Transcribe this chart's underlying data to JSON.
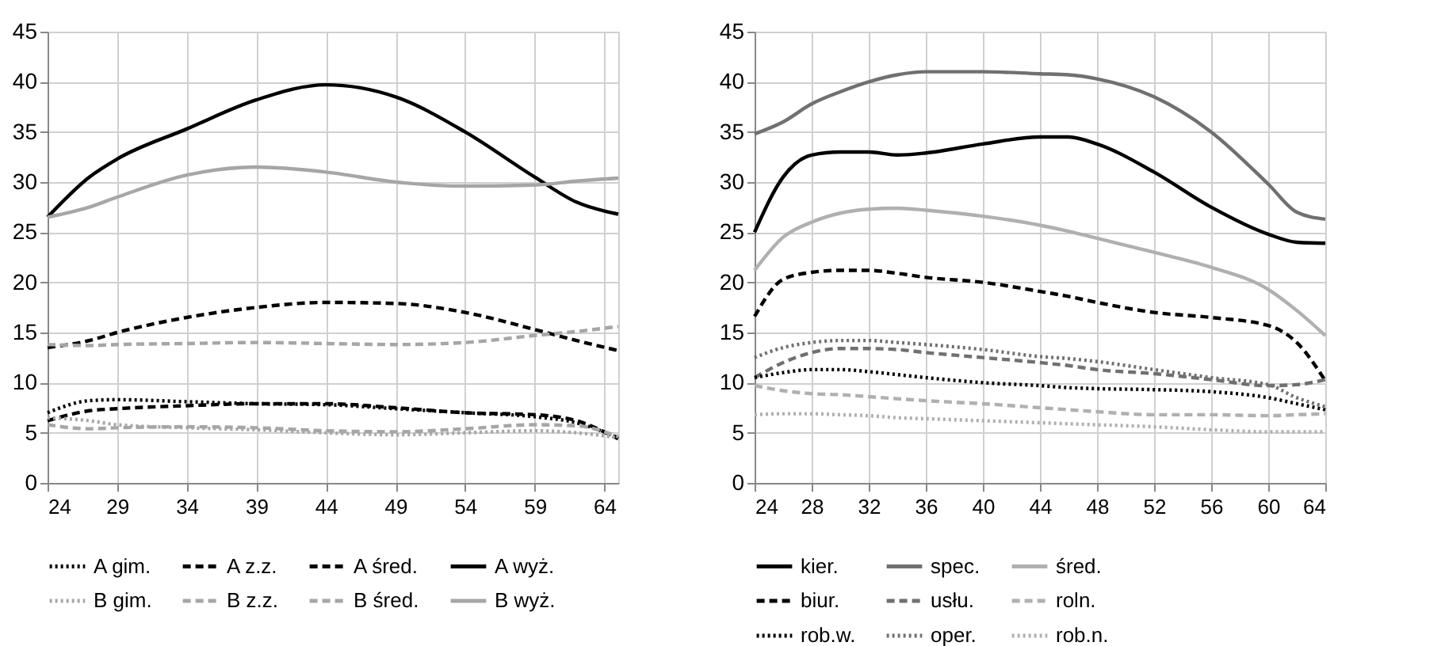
{
  "chart_data": [
    {
      "type": "line",
      "x": [
        24,
        27,
        29,
        34,
        39,
        44,
        49,
        54,
        59,
        62,
        65
      ],
      "xlim": [
        24,
        65
      ],
      "xticks": [
        24,
        29,
        34,
        39,
        44,
        49,
        54,
        59,
        64
      ],
      "ylim": [
        0,
        45
      ],
      "yticks": [
        0,
        5,
        10,
        15,
        20,
        25,
        30,
        35,
        40,
        45
      ],
      "grid": true,
      "legend": "bottom",
      "series": [
        {
          "name": "A gim.",
          "color": "#000000",
          "line_style": "dotted",
          "values": [
            7,
            8.2,
            8.3,
            8.1,
            7.9,
            7.8,
            7.4,
            7,
            6.6,
            6,
            4.5
          ]
        },
        {
          "name": "A z.z.",
          "color": "#000000",
          "line_style": "dashed",
          "values": [
            6.2,
            7.2,
            7.4,
            7.7,
            7.9,
            7.9,
            7.5,
            7,
            6.8,
            6.2,
            4.4
          ]
        },
        {
          "name": "A śred.",
          "color": "#000000",
          "line_style": "dashed",
          "values": [
            13.5,
            14.2,
            15,
            16.5,
            17.5,
            18,
            17.9,
            17,
            15.3,
            14.2,
            13.2
          ]
        },
        {
          "name": "A wyż.",
          "color": "#000000",
          "line_style": "solid",
          "values": [
            26.5,
            30.5,
            32.3,
            35.3,
            38.2,
            39.7,
            38.5,
            35,
            30.5,
            28,
            26.8
          ]
        },
        {
          "name": "B gim.",
          "color": "#a6a6a6",
          "line_style": "dotted",
          "values": [
            6.5,
            6.2,
            5.8,
            5.5,
            5.3,
            5,
            4.8,
            5,
            5.2,
            5,
            4.5
          ]
        },
        {
          "name": "B z.z.",
          "color": "#a6a6a6",
          "line_style": "dashed",
          "values": [
            5.8,
            5.4,
            5.5,
            5.6,
            5.5,
            5.2,
            5.1,
            5.4,
            5.8,
            5.7,
            4.6
          ]
        },
        {
          "name": "B śred.",
          "color": "#a6a6a6",
          "line_style": "dashed",
          "values": [
            13.8,
            13.7,
            13.8,
            13.9,
            14,
            13.9,
            13.8,
            14,
            14.7,
            15.1,
            15.6
          ]
        },
        {
          "name": "B wyż.",
          "color": "#a6a6a6",
          "line_style": "solid",
          "values": [
            26.5,
            27.5,
            28.5,
            30.7,
            31.5,
            31,
            30,
            29.6,
            29.7,
            30.1,
            30.4
          ]
        }
      ]
    },
    {
      "type": "line",
      "x": [
        24,
        26,
        28,
        30,
        32,
        34,
        36,
        40,
        44,
        46,
        48,
        52,
        56,
        60,
        62,
        64
      ],
      "xlim": [
        24,
        64
      ],
      "xticks": [
        24,
        28,
        32,
        36,
        40,
        44,
        48,
        52,
        56,
        60,
        64
      ],
      "ylim": [
        0,
        45
      ],
      "yticks": [
        0,
        5,
        10,
        15,
        20,
        25,
        30,
        35,
        40,
        45
      ],
      "grid": true,
      "legend": "bottom",
      "series": [
        {
          "name": "kier.",
          "color": "#000000",
          "line_style": "solid",
          "values": [
            25,
            30.5,
            32.7,
            33,
            33,
            32.7,
            32.9,
            33.8,
            34.5,
            34.5,
            33.8,
            31,
            27.5,
            24.8,
            24,
            23.9
          ]
        },
        {
          "name": "spec.",
          "color": "#707070",
          "line_style": "solid",
          "values": [
            34.8,
            36,
            37.8,
            39,
            40,
            40.7,
            41,
            41,
            40.8,
            40.7,
            40.3,
            38.5,
            35,
            29.8,
            27,
            26.3
          ]
        },
        {
          "name": "śred.",
          "color": "#b0b0b0",
          "line_style": "solid",
          "values": [
            21.2,
            24.5,
            26,
            26.9,
            27.3,
            27.4,
            27.2,
            26.6,
            25.7,
            25.1,
            24.4,
            23,
            21.5,
            19.3,
            17.2,
            14.7
          ]
        },
        {
          "name": "biur.",
          "color": "#000000",
          "line_style": "dashed",
          "values": [
            16.6,
            20.3,
            21,
            21.2,
            21.2,
            20.9,
            20.5,
            20,
            19.1,
            18.6,
            18,
            17,
            16.5,
            15.7,
            14,
            10.2
          ]
        },
        {
          "name": "usłu.",
          "color": "#707070",
          "line_style": "dashed",
          "values": [
            10.5,
            12,
            13,
            13.4,
            13.4,
            13.3,
            13,
            12.5,
            12,
            11.7,
            11.3,
            10.9,
            10.3,
            9.7,
            9.8,
            10.3
          ]
        },
        {
          "name": "roln.",
          "color": "#b0b0b0",
          "line_style": "dashed",
          "values": [
            9.7,
            9.2,
            8.9,
            8.8,
            8.6,
            8.4,
            8.2,
            7.9,
            7.5,
            7.3,
            7.1,
            6.8,
            6.8,
            6.7,
            6.8,
            6.9
          ]
        },
        {
          "name": "rob.w.",
          "color": "#000000",
          "line_style": "dotted",
          "values": [
            10.5,
            11,
            11.3,
            11.3,
            11.1,
            10.8,
            10.5,
            10,
            9.7,
            9.5,
            9.4,
            9.3,
            9.1,
            8.5,
            7.9,
            7.3
          ]
        },
        {
          "name": "oper.",
          "color": "#707070",
          "line_style": "dotted",
          "values": [
            12.5,
            13.5,
            14,
            14.2,
            14.2,
            14,
            13.8,
            13.3,
            12.6,
            12.4,
            12.1,
            11.3,
            10.5,
            9.8,
            8.5,
            7.6
          ]
        },
        {
          "name": "rob.n.",
          "color": "#b0b0b0",
          "line_style": "dotted",
          "values": [
            6.8,
            6.9,
            6.9,
            6.8,
            6.7,
            6.5,
            6.4,
            6.2,
            6,
            5.9,
            5.8,
            5.6,
            5.3,
            5.1,
            5.1,
            5.1
          ]
        }
      ]
    }
  ]
}
